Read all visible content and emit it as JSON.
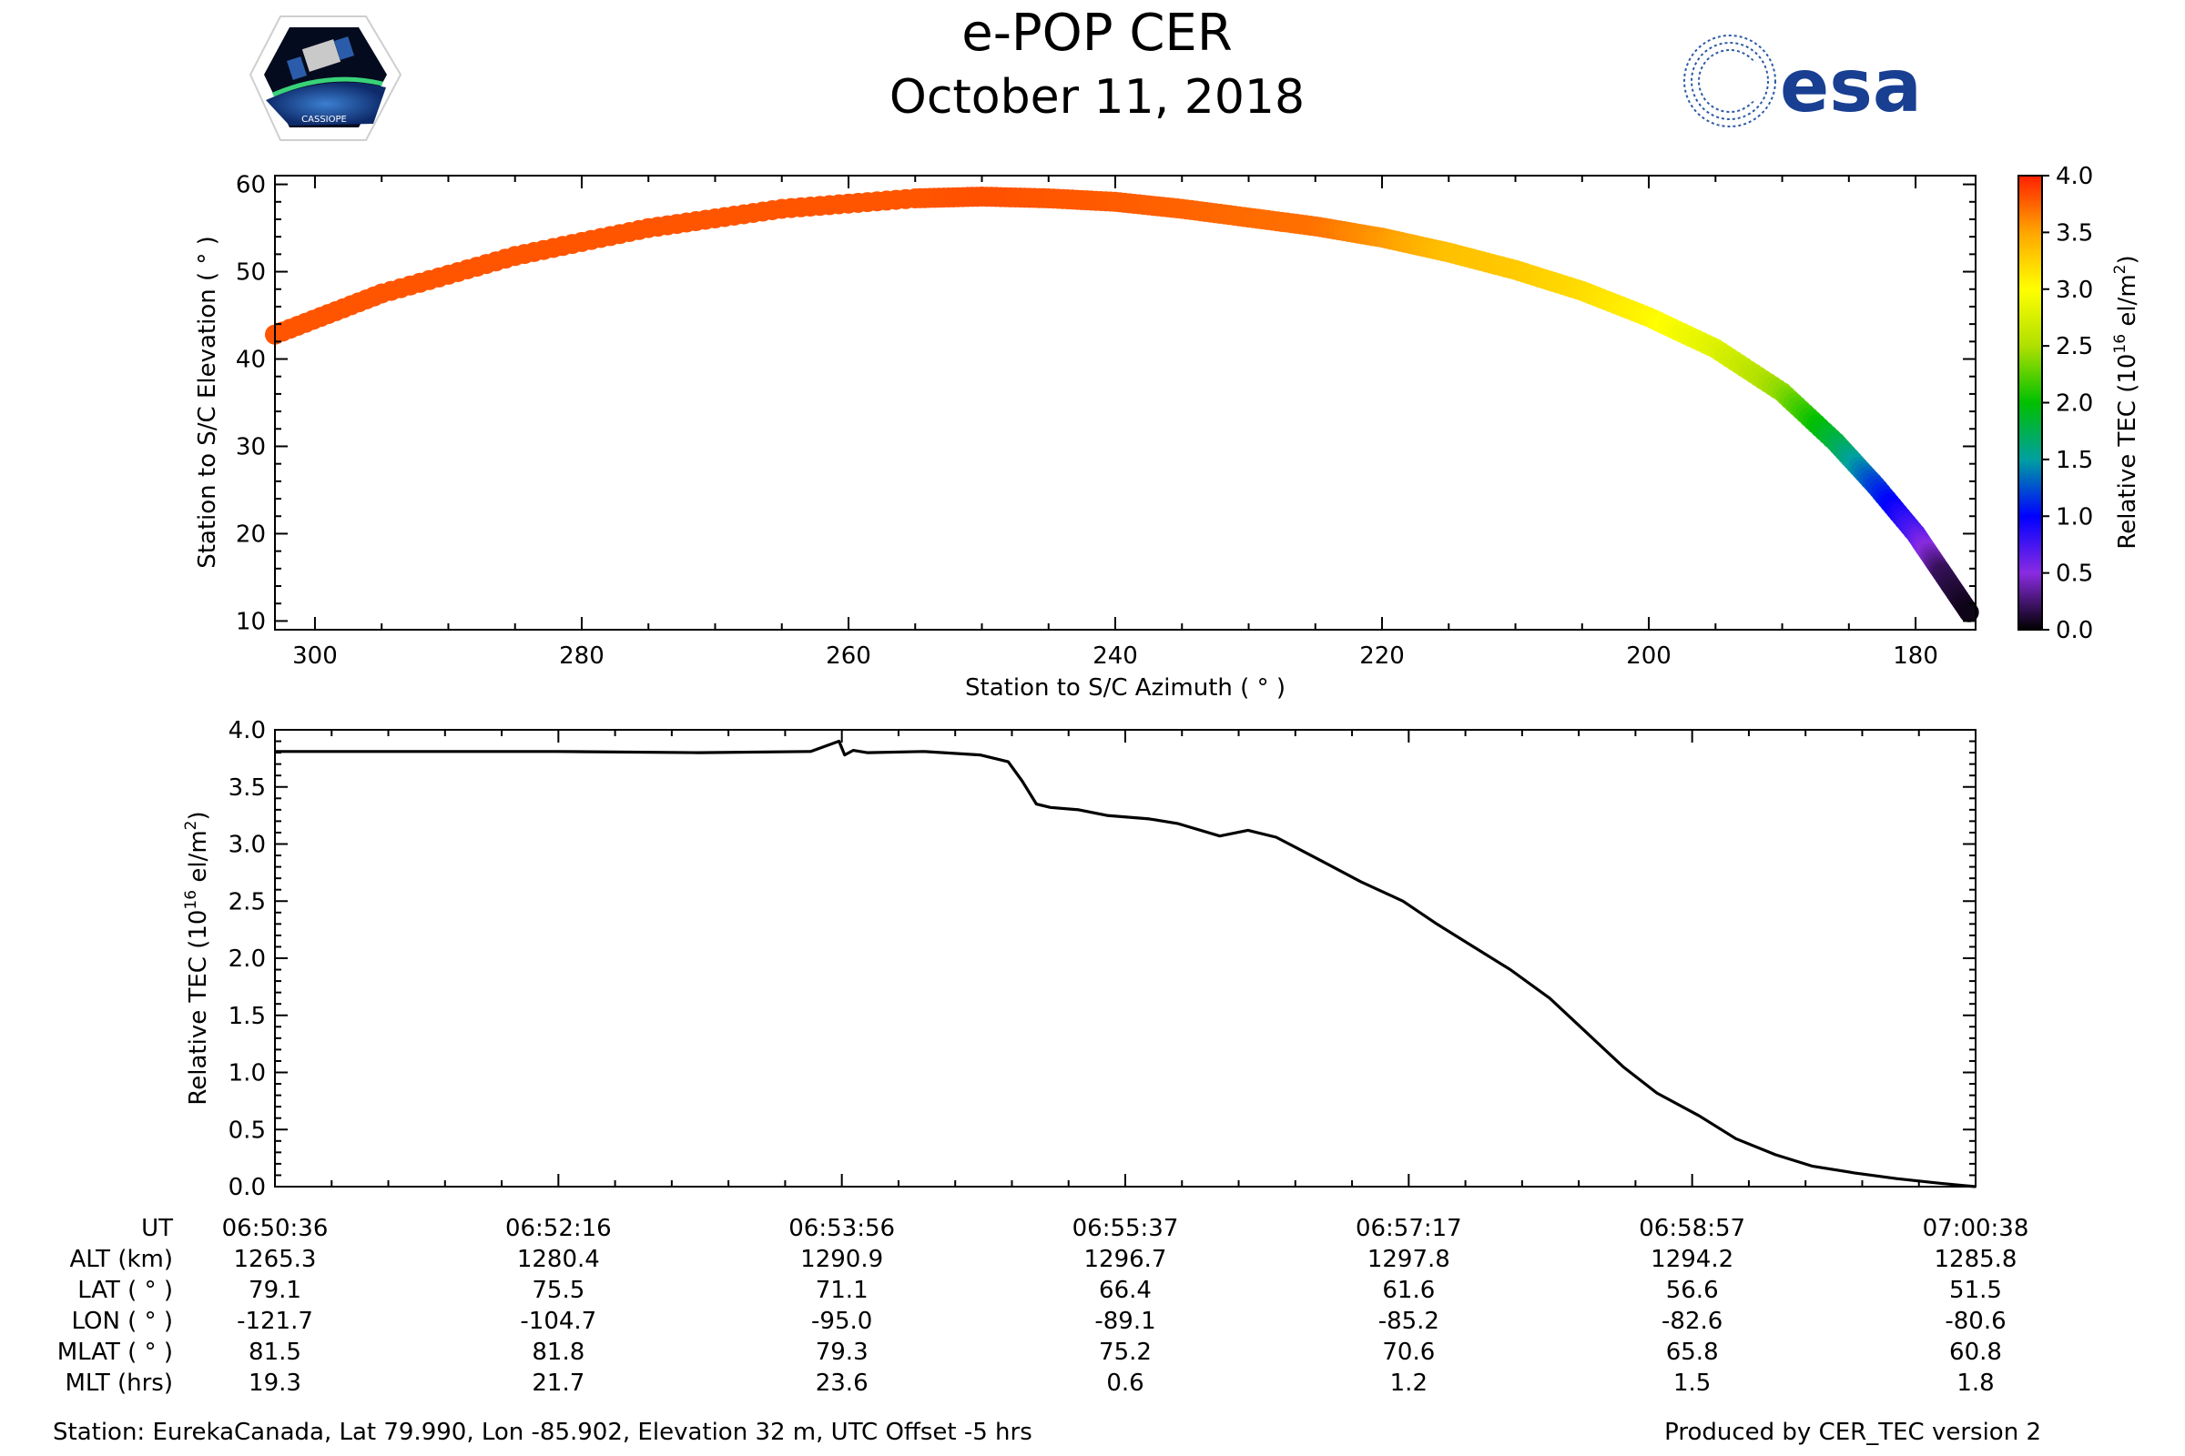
{
  "title": "e-POP CER",
  "subtitle": "October 11, 2018",
  "logo_left_text": "CASSIOPE",
  "logo_right_text": "esa",
  "chart_data": [
    {
      "type": "scatter",
      "panel": "sky-track",
      "xlabel": "Station to S/C Azimuth ( ° )",
      "ylabel": "Station to S/C Elevation ( ° )",
      "xlim": [
        303,
        175.5
      ],
      "ylim": [
        9,
        61
      ],
      "x_ticks": [
        300,
        280,
        260,
        240,
        220,
        200,
        180
      ],
      "y_ticks": [
        10,
        20,
        30,
        40,
        50,
        60
      ],
      "color_by": "Relative TEC",
      "points": [
        {
          "az": 303,
          "el": 42.8,
          "tec": 3.8
        },
        {
          "az": 295,
          "el": 47.5,
          "tec": 3.8
        },
        {
          "az": 285,
          "el": 51.8,
          "tec": 3.8
        },
        {
          "az": 275,
          "el": 55.0,
          "tec": 3.8
        },
        {
          "az": 265,
          "el": 57.2,
          "tec": 3.8
        },
        {
          "az": 255,
          "el": 58.4,
          "tec": 3.8
        },
        {
          "az": 250,
          "el": 58.6,
          "tec": 3.82
        },
        {
          "az": 245,
          "el": 58.4,
          "tec": 3.8
        },
        {
          "az": 240,
          "el": 58.0,
          "tec": 3.78
        },
        {
          "az": 235,
          "el": 57.2,
          "tec": 3.75
        },
        {
          "az": 230,
          "el": 56.2,
          "tec": 3.72
        },
        {
          "az": 225,
          "el": 55.2,
          "tec": 3.7
        },
        {
          "az": 220,
          "el": 53.9,
          "tec": 3.55
        },
        {
          "az": 215,
          "el": 52.2,
          "tec": 3.35
        },
        {
          "az": 210,
          "el": 50.2,
          "tec": 3.3
        },
        {
          "az": 205,
          "el": 47.8,
          "tec": 3.2
        },
        {
          "az": 200,
          "el": 44.8,
          "tec": 3.05
        },
        {
          "az": 195,
          "el": 41.2,
          "tec": 2.8
        },
        {
          "az": 190,
          "el": 36.2,
          "tec": 2.4
        },
        {
          "az": 186,
          "el": 30.5,
          "tec": 1.8
        },
        {
          "az": 183,
          "el": 25.5,
          "tec": 1.2
        },
        {
          "az": 180,
          "el": 20.0,
          "tec": 0.7
        },
        {
          "az": 178,
          "el": 15.5,
          "tec": 0.2
        },
        {
          "az": 176,
          "el": 11.0,
          "tec": 0.05
        }
      ],
      "colorbar": {
        "label": "Relative TEC (10",
        "label_exp": "16",
        "label_tail": " el/m",
        "label_sq": "2",
        "label_close": ")",
        "range": [
          0,
          4
        ],
        "ticks": [
          "0.0",
          "0.5",
          "1.0",
          "1.5",
          "2.0",
          "2.5",
          "3.0",
          "3.5",
          "4.0"
        ],
        "colors": [
          "#000000",
          "#8a2be2",
          "#0000ff",
          "#00a0a0",
          "#00c000",
          "#b0e000",
          "#ffff00",
          "#ffa500",
          "#ff2000"
        ]
      }
    },
    {
      "type": "line",
      "panel": "tec-timeseries",
      "ylabel": "Relative TEC (10",
      "ylabel_exp": "16",
      "ylabel_tail": " el/m",
      "ylabel_sq": "2",
      "ylabel_close": ")",
      "xlim": [
        0,
        603
      ],
      "ylim": [
        0,
        4
      ],
      "y_ticks": [
        "0.0",
        "0.5",
        "1.0",
        "1.5",
        "2.0",
        "2.5",
        "3.0",
        "3.5",
        "4.0"
      ],
      "series": [
        {
          "x": [
            0,
            60,
            100,
            150,
            190,
            200,
            202,
            205,
            210,
            230,
            250,
            260,
            265,
            270,
            275,
            285,
            295,
            310,
            320,
            335,
            345,
            355,
            362,
            372,
            385,
            400,
            412,
            425,
            438,
            452,
            465,
            478,
            490,
            505,
            518,
            532,
            545,
            560,
            575,
            590,
            603
          ],
          "y": [
            3.81,
            3.81,
            3.81,
            3.8,
            3.81,
            3.9,
            3.78,
            3.82,
            3.8,
            3.81,
            3.78,
            3.72,
            3.55,
            3.35,
            3.32,
            3.3,
            3.25,
            3.22,
            3.18,
            3.07,
            3.12,
            3.06,
            2.97,
            2.84,
            2.67,
            2.5,
            2.3,
            2.1,
            1.9,
            1.65,
            1.35,
            1.05,
            0.82,
            0.62,
            0.42,
            0.28,
            0.18,
            0.12,
            0.07,
            0.03,
            0.0
          ]
        }
      ]
    }
  ],
  "table": {
    "row_labels": [
      "UT",
      "ALT (km)",
      "LAT ( ° )",
      "LON ( ° )",
      "MLAT ( ° )",
      "MLT (hrs)"
    ],
    "columns": [
      [
        "06:50:36",
        "1265.3",
        "79.1",
        "-121.7",
        "81.5",
        "19.3"
      ],
      [
        "06:52:16",
        "1280.4",
        "75.5",
        "-104.7",
        "81.8",
        "21.7"
      ],
      [
        "06:53:56",
        "1290.9",
        "71.1",
        "-95.0",
        "79.3",
        "23.6"
      ],
      [
        "06:55:37",
        "1296.7",
        "66.4",
        "-89.1",
        "75.2",
        "0.6"
      ],
      [
        "06:57:17",
        "1297.8",
        "61.6",
        "-85.2",
        "70.6",
        "1.2"
      ],
      [
        "06:58:57",
        "1294.2",
        "56.6",
        "-82.6",
        "65.8",
        "1.5"
      ],
      [
        "07:00:38",
        "1285.8",
        "51.5",
        "-80.6",
        "60.8",
        "1.8"
      ]
    ]
  },
  "footer_left": "Station: EurekaCanada, Lat 79.990, Lon -85.902, Elevation 32 m, UTC Offset -5 hrs",
  "footer_right": "Produced by CER_TEC version 2"
}
